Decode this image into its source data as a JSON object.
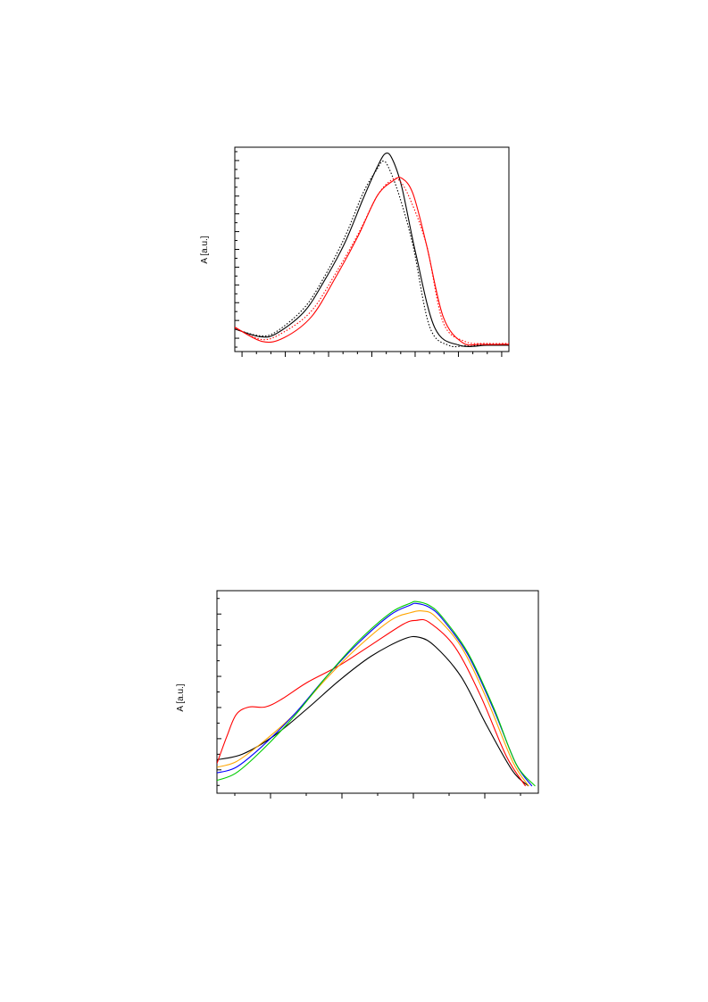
{
  "chart_data": [
    {
      "type": "line",
      "title": "",
      "xlabel": "",
      "ylabel": "A [a.u.]",
      "xlim": [
        0,
        1
      ],
      "ylim": [
        0,
        1
      ],
      "grid": false,
      "legend": "none",
      "series": [
        {
          "color": "#000000",
          "dash": "solid",
          "x": [
            0.0,
            0.09,
            0.15,
            0.25,
            0.32,
            0.4,
            0.47,
            0.52,
            0.55,
            0.575,
            0.61,
            0.66,
            0.73,
            0.82,
            0.92,
            1.0
          ],
          "y": [
            0.085,
            0.045,
            0.06,
            0.17,
            0.32,
            0.53,
            0.77,
            0.93,
            1.0,
            0.97,
            0.82,
            0.48,
            0.09,
            0.0,
            0.0,
            0.0
          ]
        },
        {
          "color": "#000000",
          "dash": "dotted",
          "x": [
            0.0,
            0.09,
            0.15,
            0.25,
            0.32,
            0.4,
            0.47,
            0.52,
            0.54,
            0.56,
            0.6,
            0.65,
            0.71,
            0.78,
            0.86,
            1.0
          ],
          "y": [
            0.085,
            0.05,
            0.07,
            0.19,
            0.34,
            0.56,
            0.8,
            0.92,
            0.96,
            0.93,
            0.78,
            0.52,
            0.1,
            0.0,
            0.0,
            0.0
          ]
        },
        {
          "color": "#ff0000",
          "dash": "solid",
          "x": [
            0.0,
            0.1,
            0.18,
            0.28,
            0.37,
            0.45,
            0.52,
            0.58,
            0.61,
            0.65,
            0.7,
            0.76,
            0.83,
            0.9,
            1.0
          ],
          "y": [
            0.095,
            0.02,
            0.04,
            0.15,
            0.36,
            0.57,
            0.78,
            0.86,
            0.87,
            0.79,
            0.52,
            0.15,
            0.015,
            0.005,
            0.005
          ]
        },
        {
          "color": "#ff0000",
          "dash": "dotted",
          "x": [
            0.0,
            0.1,
            0.18,
            0.28,
            0.37,
            0.45,
            0.52,
            0.57,
            0.6,
            0.64,
            0.7,
            0.76,
            0.84,
            0.92,
            1.0
          ],
          "y": [
            0.09,
            0.03,
            0.07,
            0.18,
            0.38,
            0.58,
            0.78,
            0.86,
            0.86,
            0.76,
            0.52,
            0.12,
            0.02,
            0.01,
            0.01
          ]
        }
      ]
    },
    {
      "type": "line",
      "title": "",
      "xlabel": "",
      "ylabel": "A [a.u.]",
      "xlim": [
        0,
        1
      ],
      "ylim": [
        0,
        1
      ],
      "grid": false,
      "legend": "none",
      "series": [
        {
          "color": "#000000",
          "x": [
            0.0,
            0.08,
            0.18,
            0.28,
            0.38,
            0.48,
            0.58,
            0.63,
            0.68,
            0.76,
            0.84,
            0.92,
            0.97
          ],
          "y": [
            0.14,
            0.17,
            0.27,
            0.41,
            0.56,
            0.69,
            0.78,
            0.79,
            0.74,
            0.58,
            0.32,
            0.08,
            0.0
          ]
        },
        {
          "color": "#ff0000",
          "x": [
            0.0,
            0.03,
            0.06,
            0.1,
            0.15,
            0.2,
            0.28,
            0.38,
            0.48,
            0.58,
            0.62,
            0.66,
            0.74,
            0.82,
            0.9,
            0.96
          ],
          "y": [
            0.12,
            0.26,
            0.38,
            0.42,
            0.42,
            0.46,
            0.55,
            0.64,
            0.75,
            0.86,
            0.88,
            0.87,
            0.74,
            0.48,
            0.16,
            0.0
          ]
        },
        {
          "color": "#ffa500",
          "x": [
            0.0,
            0.06,
            0.14,
            0.24,
            0.34,
            0.44,
            0.54,
            0.6,
            0.64,
            0.68,
            0.76,
            0.84,
            0.92,
            0.97
          ],
          "y": [
            0.1,
            0.13,
            0.23,
            0.38,
            0.57,
            0.74,
            0.88,
            0.92,
            0.93,
            0.9,
            0.74,
            0.46,
            0.13,
            0.0
          ]
        },
        {
          "color": "#0000ff",
          "x": [
            0.0,
            0.06,
            0.14,
            0.24,
            0.34,
            0.44,
            0.54,
            0.6,
            0.62,
            0.66,
            0.7,
            0.78,
            0.86,
            0.93,
            0.98
          ],
          "y": [
            0.07,
            0.1,
            0.21,
            0.38,
            0.58,
            0.76,
            0.91,
            0.96,
            0.97,
            0.95,
            0.89,
            0.7,
            0.41,
            0.12,
            0.0
          ]
        },
        {
          "color": "#00cc00",
          "x": [
            0.0,
            0.06,
            0.14,
            0.24,
            0.34,
            0.44,
            0.54,
            0.6,
            0.62,
            0.66,
            0.7,
            0.78,
            0.86,
            0.93,
            0.99
          ],
          "y": [
            0.03,
            0.07,
            0.19,
            0.37,
            0.58,
            0.77,
            0.92,
            0.97,
            0.98,
            0.96,
            0.9,
            0.71,
            0.42,
            0.12,
            0.0
          ]
        }
      ]
    }
  ]
}
